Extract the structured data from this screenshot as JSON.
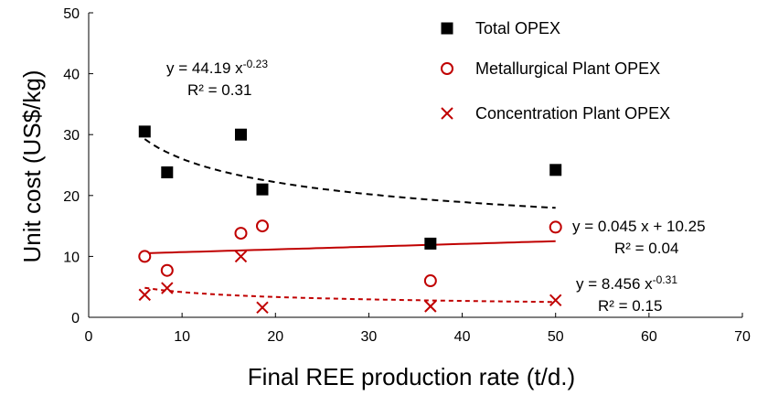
{
  "chart_data": {
    "type": "scatter",
    "xlabel": "Final REE production rate (t/d.)",
    "ylabel": "Unit cost (US$/kg)",
    "xlim": [
      0,
      70
    ],
    "ylim": [
      0,
      50
    ],
    "xticks": [
      0,
      10,
      20,
      30,
      40,
      50,
      60,
      70
    ],
    "yticks": [
      0,
      10,
      20,
      30,
      40,
      50
    ],
    "legend_position": "top-right",
    "series": [
      {
        "name": "Total OPEX",
        "marker": "square",
        "color": "#000000",
        "points": [
          [
            6,
            30.5
          ],
          [
            8.4,
            23.8
          ],
          [
            16.3,
            30.0
          ],
          [
            18.6,
            21.0
          ],
          [
            36.6,
            12.1
          ],
          [
            50,
            24.2
          ]
        ],
        "trend": {
          "type": "power",
          "a": 44.19,
          "b": -0.23,
          "range": [
            6,
            50
          ],
          "style": "dashed",
          "color": "#000000",
          "eq_prefix": "y = 44.19 x",
          "eq_exp": "-0.23",
          "r2": "R² = 0.31"
        }
      },
      {
        "name": "Metallurgical Plant OPEX",
        "marker": "circle",
        "color": "#c00000",
        "points": [
          [
            6,
            10.0
          ],
          [
            8.4,
            7.7
          ],
          [
            16.3,
            13.8
          ],
          [
            18.6,
            15.0
          ],
          [
            36.6,
            6.0
          ],
          [
            50,
            14.8
          ]
        ],
        "trend": {
          "type": "linear",
          "m": 0.045,
          "c": 10.25,
          "range": [
            6,
            50
          ],
          "style": "solid",
          "color": "#c00000",
          "eq_prefix": "y = 0.045 x + 10.25",
          "eq_exp": "",
          "r2": "R² = 0.04"
        }
      },
      {
        "name": "Concentration Plant OPEX",
        "marker": "x",
        "color": "#c00000",
        "points": [
          [
            6,
            3.7
          ],
          [
            8.4,
            4.8
          ],
          [
            16.3,
            10.0
          ],
          [
            18.6,
            1.6
          ],
          [
            36.6,
            1.8
          ],
          [
            50,
            2.8
          ]
        ],
        "trend": {
          "type": "power",
          "a": 8.456,
          "b": -0.31,
          "range": [
            6,
            50
          ],
          "style": "dashed",
          "color": "#c00000",
          "eq_prefix": "y = 8.456 x",
          "eq_exp": "-0.31",
          "r2": "R² = 0.15"
        }
      }
    ]
  }
}
